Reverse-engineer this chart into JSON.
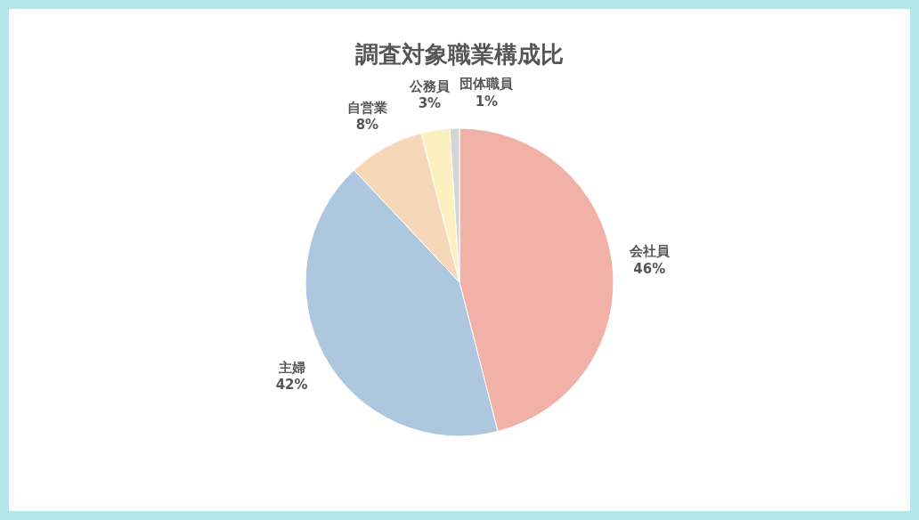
{
  "chart_data": {
    "type": "pie",
    "title": "調査対象職業構成比",
    "categories": [
      "会社員",
      "主婦",
      "自営業",
      "公務員",
      "団体職員"
    ],
    "values": [
      46,
      42,
      8,
      3,
      1
    ],
    "colors": [
      "#f2b1a7",
      "#adc7df",
      "#f6d8b9",
      "#fdf0c0",
      "#d5d5d5"
    ],
    "value_labels": [
      "46%",
      "42%",
      "8%",
      "3%",
      "1%"
    ]
  }
}
